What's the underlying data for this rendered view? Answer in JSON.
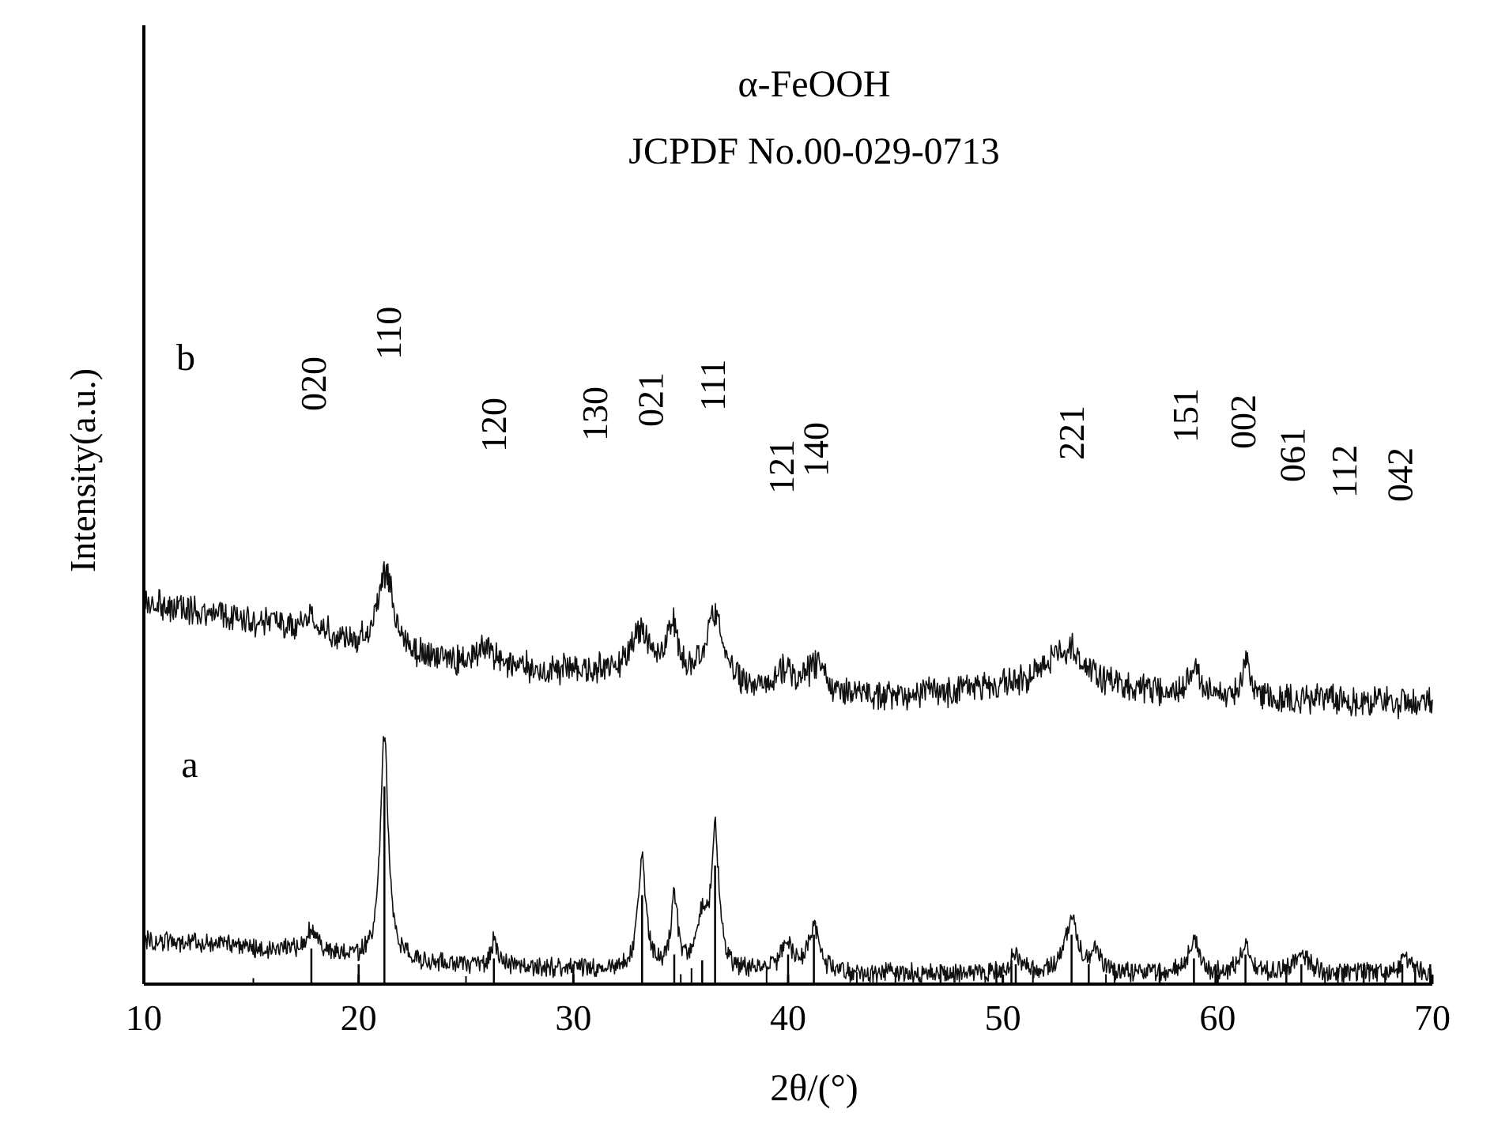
{
  "chart_data": {
    "type": "line",
    "title": "α-FeOOH",
    "subtitle": "JCPDF No.00-029-0713",
    "xlabel": "2θ/(°)",
    "ylabel": "Intensity(a.u.)",
    "xlim": [
      10,
      70
    ],
    "xticks": [
      10,
      20,
      30,
      40,
      50,
      60,
      70
    ],
    "yticks": [],
    "grid": false,
    "legend": "none",
    "series": [
      {
        "name": "a",
        "noise": 12,
        "baseline": [
          [
            10,
            60
          ],
          [
            14,
            54
          ],
          [
            18,
            40
          ],
          [
            22,
            30
          ],
          [
            26,
            26
          ],
          [
            30,
            20
          ],
          [
            35,
            18
          ],
          [
            40,
            16
          ],
          [
            45,
            14
          ],
          [
            50,
            14
          ],
          [
            55,
            14
          ],
          [
            60,
            14
          ],
          [
            65,
            14
          ],
          [
            70,
            14
          ]
        ],
        "peaks": [
          {
            "x": 17.8,
            "h": 35,
            "w": 0.35
          },
          {
            "x": 21.2,
            "h": 310,
            "w": 0.22
          },
          {
            "x": 26.3,
            "h": 35,
            "w": 0.15
          },
          {
            "x": 33.2,
            "h": 150,
            "w": 0.22
          },
          {
            "x": 34.7,
            "h": 95,
            "w": 0.2
          },
          {
            "x": 36.0,
            "h": 70,
            "w": 0.3
          },
          {
            "x": 36.6,
            "h": 190,
            "w": 0.2
          },
          {
            "x": 39.9,
            "h": 40,
            "w": 0.3
          },
          {
            "x": 41.2,
            "h": 60,
            "w": 0.3
          },
          {
            "x": 50.6,
            "h": 25,
            "w": 0.3
          },
          {
            "x": 53.2,
            "h": 75,
            "w": 0.35
          },
          {
            "x": 54.3,
            "h": 25,
            "w": 0.3
          },
          {
            "x": 58.9,
            "h": 45,
            "w": 0.3
          },
          {
            "x": 61.3,
            "h": 45,
            "w": 0.25
          },
          {
            "x": 63.9,
            "h": 30,
            "w": 0.4
          },
          {
            "x": 68.8,
            "h": 18,
            "w": 0.4
          }
        ]
      },
      {
        "name": "b",
        "noise": 18,
        "baseline": [
          [
            10,
            525
          ],
          [
            14,
            505
          ],
          [
            18,
            480
          ],
          [
            22,
            450
          ],
          [
            26,
            435
          ],
          [
            30,
            430
          ],
          [
            34,
            425
          ],
          [
            38,
            400
          ],
          [
            42,
            395
          ],
          [
            46,
            395
          ],
          [
            50,
            405
          ],
          [
            54,
            400
          ],
          [
            58,
            395
          ],
          [
            62,
            390
          ],
          [
            66,
            390
          ],
          [
            70,
            385
          ]
        ],
        "peaks": [
          {
            "x": 17.8,
            "h": 25,
            "w": 0.4
          },
          {
            "x": 21.3,
            "h": 110,
            "w": 0.45
          },
          {
            "x": 26.0,
            "h": 25,
            "w": 0.5
          },
          {
            "x": 33.1,
            "h": 60,
            "w": 0.5
          },
          {
            "x": 34.6,
            "h": 65,
            "w": 0.3
          },
          {
            "x": 36.6,
            "h": 95,
            "w": 0.5
          },
          {
            "x": 39.9,
            "h": 30,
            "w": 0.5
          },
          {
            "x": 41.3,
            "h": 40,
            "w": 0.5
          },
          {
            "x": 53.0,
            "h": 60,
            "w": 1.2
          },
          {
            "x": 58.9,
            "h": 45,
            "w": 0.3
          },
          {
            "x": 61.3,
            "h": 55,
            "w": 0.2
          }
        ]
      }
    ],
    "series_labels": [
      "a",
      "b"
    ],
    "reference": {
      "name": "JCPDF No.00-029-0713",
      "positions": [
        15.1,
        17.8,
        20.0,
        21.2,
        25.0,
        26.3,
        30.0,
        33.2,
        34.7,
        35.0,
        35.5,
        36.0,
        36.6,
        39.0,
        40.0,
        41.2,
        43.2,
        45.0,
        47.1,
        49.7,
        50.4,
        50.6,
        51.4,
        53.2,
        54.0,
        54.8,
        55.2,
        57.3,
        58.9,
        59.9,
        61.3,
        63.2,
        63.9,
        65.0,
        65.6,
        66.8,
        67.8,
        68.6,
        69.2,
        69.9
      ],
      "intensities": [
        3,
        18,
        10,
        100,
        4,
        13,
        10,
        45,
        15,
        5,
        8,
        12,
        60,
        7,
        15,
        25,
        6,
        5,
        10,
        10,
        12,
        10,
        7,
        25,
        10,
        5,
        7,
        10,
        13,
        10,
        15,
        10,
        10,
        5,
        8,
        10,
        7,
        10,
        10,
        10
      ]
    },
    "annotations": [
      {
        "text": "020",
        "x": 17.8
      },
      {
        "text": "110",
        "x": 21.3
      },
      {
        "text": "120",
        "x": 26.2
      },
      {
        "text": "130",
        "x": 30.9
      },
      {
        "text": "021",
        "x": 33.5
      },
      {
        "text": "111",
        "x": 36.4
      },
      {
        "text": "121",
        "x": 39.6
      },
      {
        "text": "140",
        "x": 41.2
      },
      {
        "text": "221",
        "x": 53.1
      },
      {
        "text": "151",
        "x": 58.4
      },
      {
        "text": "002",
        "x": 61.1
      },
      {
        "text": "061",
        "x": 63.4
      },
      {
        "text": "112",
        "x": 65.8
      },
      {
        "text": "042",
        "x": 68.4
      }
    ]
  }
}
